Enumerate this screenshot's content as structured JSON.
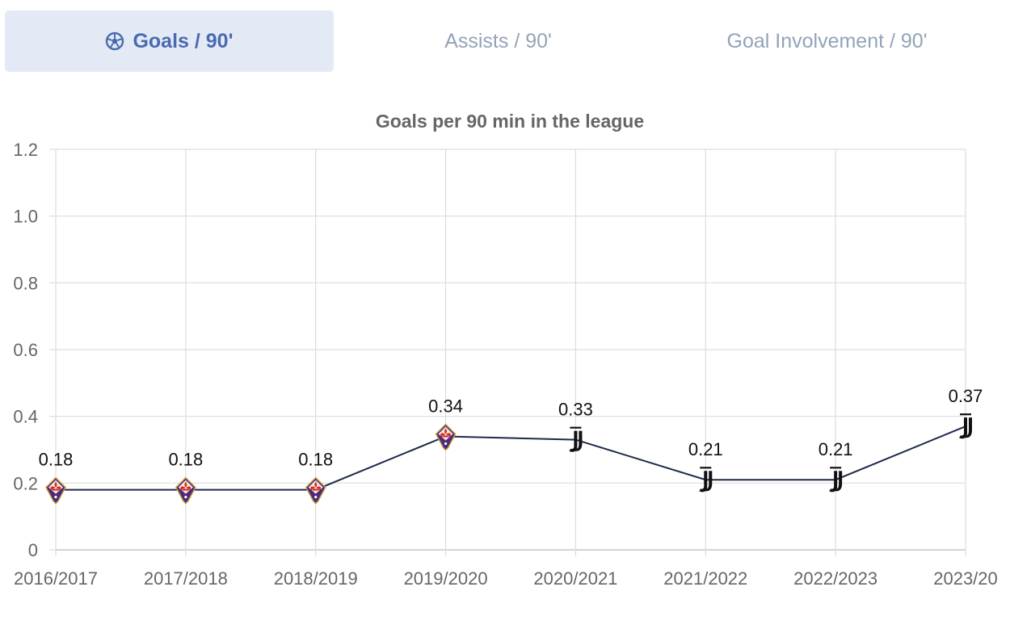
{
  "tabs": [
    {
      "label": "Goals / 90'",
      "icon": "football-icon",
      "active": true
    },
    {
      "label": "Assists / 90'",
      "active": false
    },
    {
      "label": "Goal Involvement / 90'",
      "active": false
    }
  ],
  "colors": {
    "active_tab_bg": "#e3eaf5",
    "active_tab_text": "#4a6ab0",
    "inactive_tab_text": "#94a3b8",
    "line": "#1e2a4a",
    "grid": "#dddddd"
  },
  "chart_data": {
    "type": "line",
    "title": "Goals per 90 min in the league",
    "categories": [
      "2016/2017",
      "2017/2018",
      "2018/2019",
      "2019/2020",
      "2020/2021",
      "2021/2022",
      "2022/2023",
      "2023/20"
    ],
    "values": [
      0.18,
      0.18,
      0.18,
      0.34,
      0.33,
      0.21,
      0.21,
      0.37
    ],
    "data_labels": [
      "0.18",
      "0.18",
      "0.18",
      "0.34",
      "0.33",
      "0.21",
      "0.21",
      "0.37"
    ],
    "point_icons": [
      "fiorentina-crest-icon",
      "fiorentina-crest-icon",
      "fiorentina-crest-icon",
      "fiorentina-crest-icon",
      "juventus-crest-icon",
      "juventus-crest-icon",
      "juventus-crest-icon",
      "juventus-crest-icon"
    ],
    "ylim": [
      0,
      1.2
    ],
    "yticks": [
      "0",
      "0.2",
      "0.4",
      "0.6",
      "0.8",
      "1.0",
      "1.2"
    ],
    "xlabel": "",
    "ylabel": "",
    "grid": true
  }
}
